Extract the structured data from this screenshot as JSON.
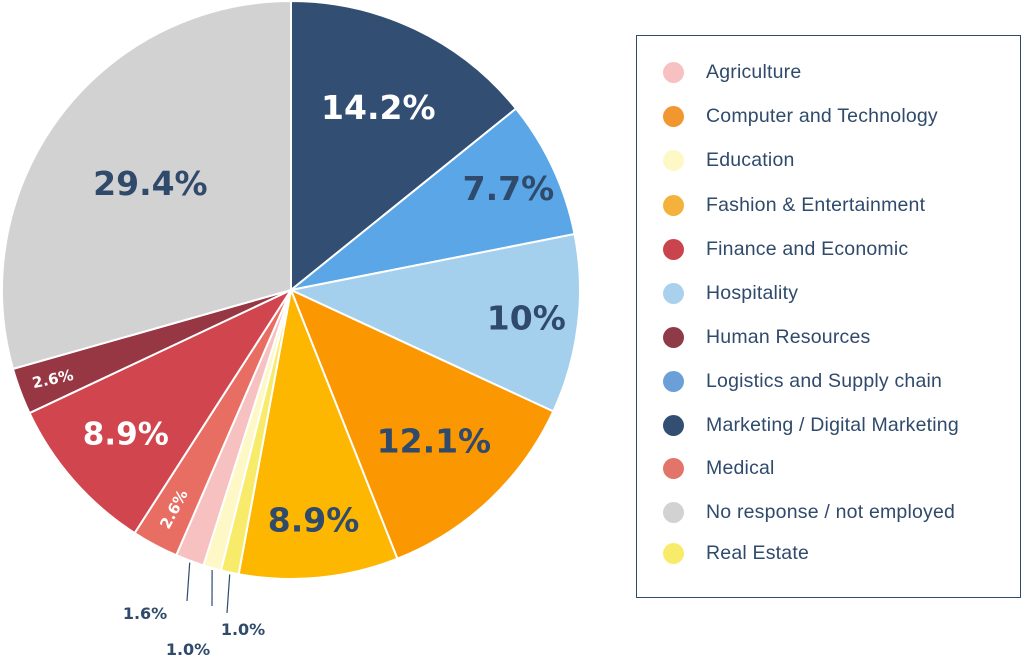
{
  "chart_data": {
    "type": "pie",
    "title": "",
    "slices": [
      {
        "label": "Marketing / Digital Marketing",
        "value": 14.2,
        "display": "14.2%",
        "color": "#324e72",
        "text_color": "#ffffff"
      },
      {
        "label": "Logistics and Supply chain",
        "value": 7.7,
        "display": "7.7%",
        "color": "#5aa6e6",
        "text_color": "#2f4a6b"
      },
      {
        "label": "Hospitality",
        "value": 10.0,
        "display": "10%",
        "color": "#a4d0ee",
        "text_color": "#2f4a6b"
      },
      {
        "label": "Computer and Technology",
        "value": 12.1,
        "display": "12.1%",
        "color": "#fb9700",
        "text_color": "#2f4a6b"
      },
      {
        "label": "Fashion & Entertainment",
        "value": 8.9,
        "display": "8.9%",
        "color": "#fdb700",
        "text_color": "#2f4a6b"
      },
      {
        "label": "Real Estate",
        "value": 1.0,
        "display": "1.0%",
        "color": "#f8eb6a",
        "text_color": "#2f4a6b"
      },
      {
        "label": "Education",
        "value": 1.0,
        "display": "1.0%",
        "color": "#fdf8c6",
        "text_color": "#2f4a6b"
      },
      {
        "label": "Agriculture",
        "value": 1.6,
        "display": "1.6%",
        "color": "#f7c1c1",
        "text_color": "#2f4a6b"
      },
      {
        "label": "Medical",
        "value": 2.6,
        "display": "2.6%",
        "color": "#e86e64",
        "text_color": "#ffffff"
      },
      {
        "label": "Finance and Economic",
        "value": 8.9,
        "display": "8.9%",
        "color": "#d1454f",
        "text_color": "#ffffff"
      },
      {
        "label": "Human Resources",
        "value": 2.6,
        "display": "2.6%",
        "color": "#973744",
        "text_color": "#ffffff"
      },
      {
        "label": "No response / not employed",
        "value": 29.4,
        "display": "29.4%",
        "color": "#d2d2d2",
        "text_color": "#2f4a6b"
      }
    ],
    "legend_position": "right"
  },
  "legend": {
    "items": [
      {
        "label": "Agriculture",
        "color": "#f7c1c1"
      },
      {
        "label": "Computer and Technology",
        "color": "#f2962f"
      },
      {
        "label": "Education",
        "color": "#fdf8c6"
      },
      {
        "label": "Fashion & Entertainment",
        "color": "#f4b23c"
      },
      {
        "label": "Finance and Economic",
        "color": "#c9444d"
      },
      {
        "label": "Hospitality",
        "color": "#a9d1ee"
      },
      {
        "label": "Human Resources",
        "color": "#8e3b47"
      },
      {
        "label": "Logistics and Supply chain",
        "color": "#6a9fd8"
      },
      {
        "label": "Marketing / Digital Marketing",
        "color": "#324e72"
      },
      {
        "label": "Medical",
        "color": "#e2746a"
      },
      {
        "label": "No response / not employed",
        "color": "#d2d2d2"
      },
      {
        "label": "Real Estate",
        "color": "#f8eb6a"
      }
    ]
  }
}
